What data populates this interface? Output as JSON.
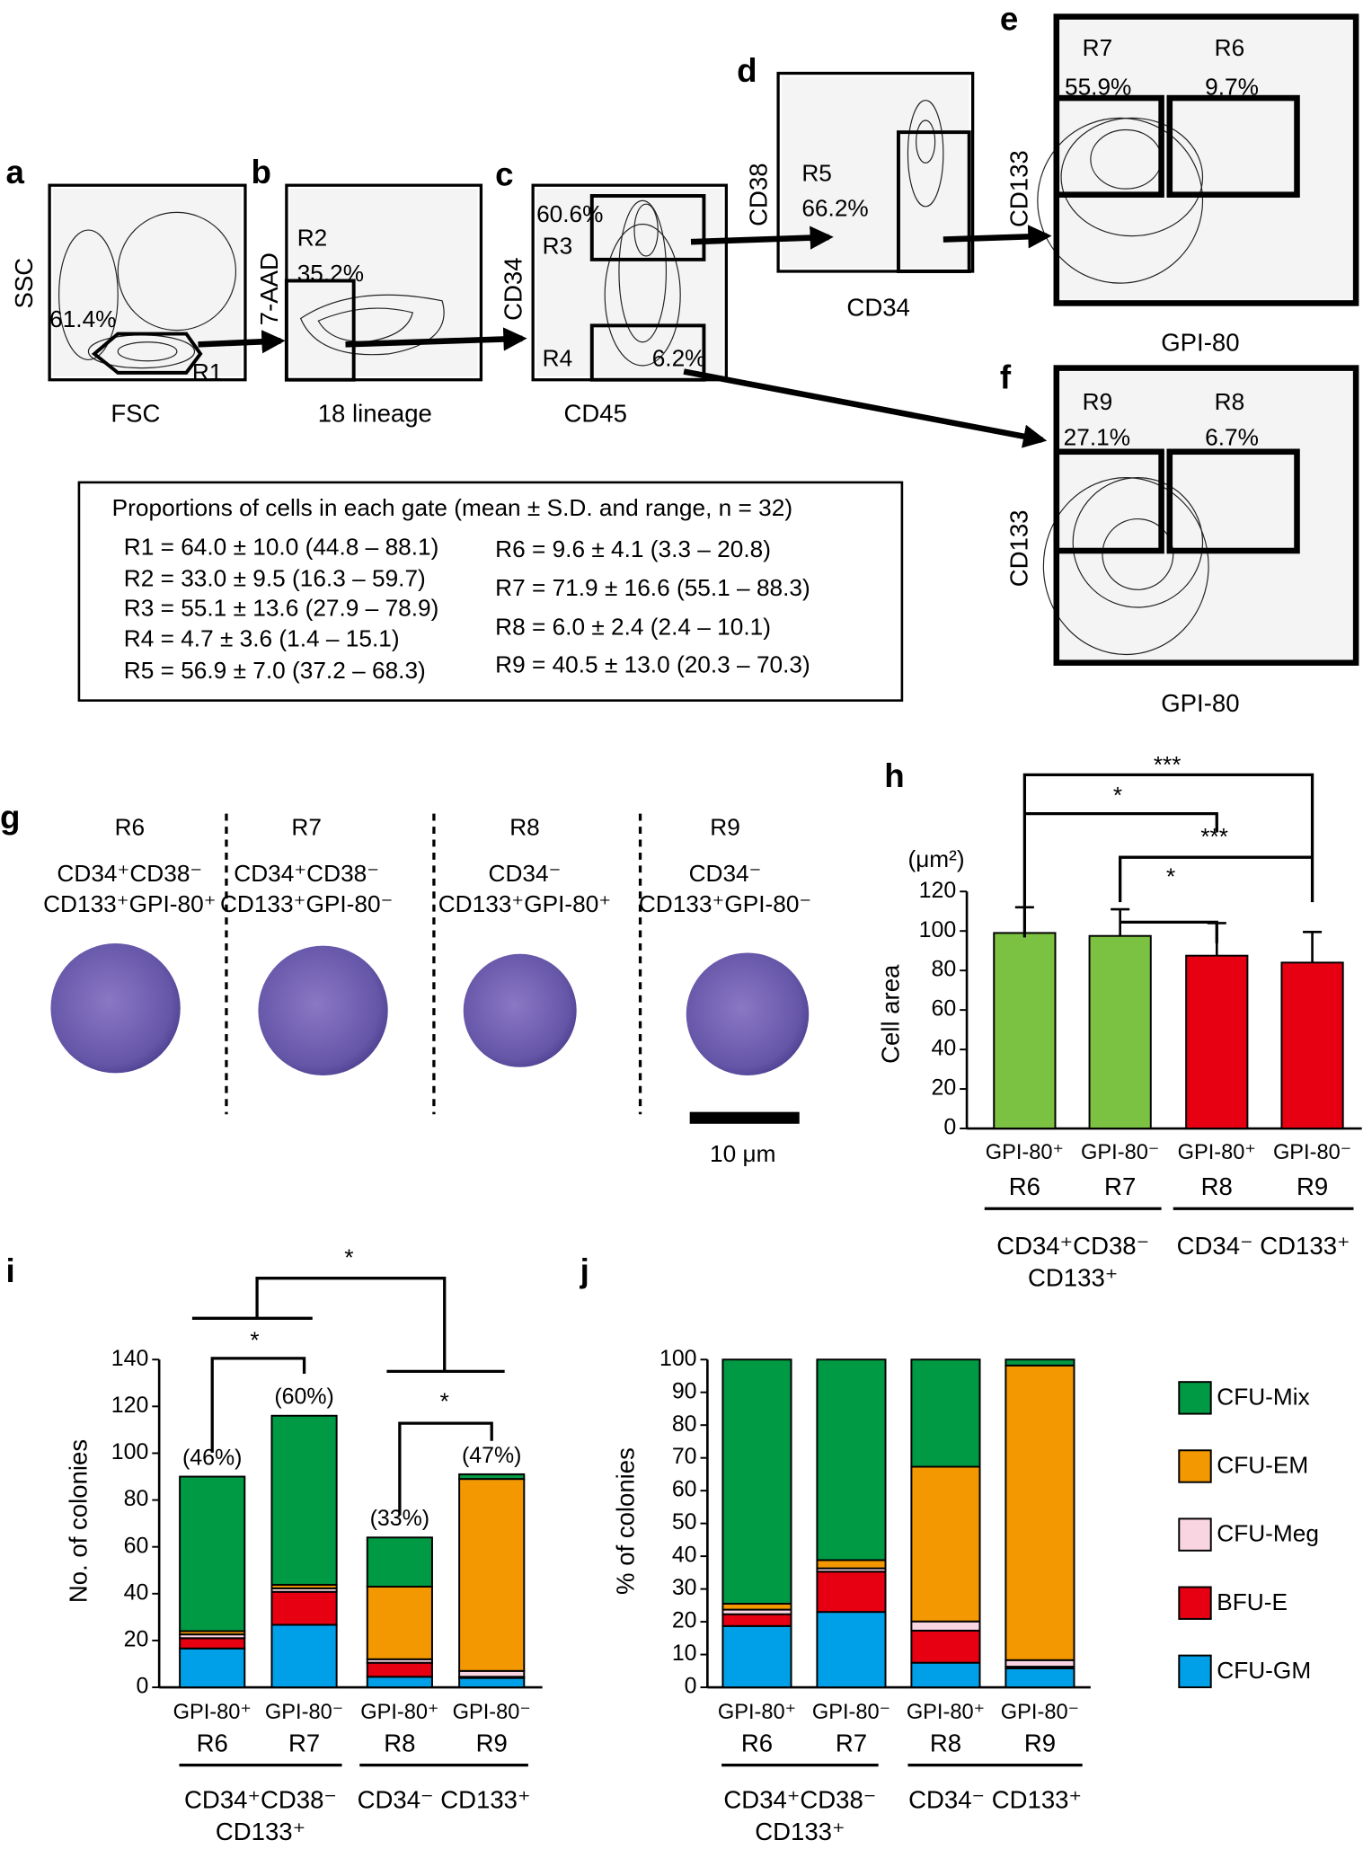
{
  "panels": [
    {
      "letter": "a",
      "y_label": "SSC",
      "x_label": "FSC",
      "labels": [
        "61.4%",
        "R1"
      ]
    },
    {
      "letter": "b",
      "y_label": "7-AAD",
      "x_label": "18 lineage",
      "labels": [
        "R2",
        "35.2%"
      ]
    },
    {
      "letter": "c",
      "y_label": "CD34",
      "x_label": "CD45",
      "labels": [
        "60.6%",
        "R3",
        "R4",
        "6.2%"
      ]
    },
    {
      "letter": "d",
      "y_label": "CD38",
      "x_label": "CD34",
      "labels": [
        "R5",
        "66.2%"
      ]
    },
    {
      "letter": "e",
      "y_label": "CD133",
      "x_label": "GPI-80",
      "labels": [
        "R7",
        "55.9%",
        "R6",
        "9.7%"
      ]
    },
    {
      "letter": "f",
      "y_label": "CD133",
      "x_label": "GPI-80",
      "labels": [
        "R9",
        "27.1%",
        "R8",
        "6.7%"
      ]
    }
  ],
  "summary": {
    "title": "Proportions of cells in each gate (mean ± S.D. and range, n = 32)",
    "left": [
      "R1 = 64.0 ± 10.0 (44.8 – 88.1)",
      "R2 = 33.0 ± 9.5 (16.3 – 59.7)",
      "R3 = 55.1 ± 13.6 (27.9 – 78.9)",
      "R4 = 4.7 ± 3.6 (1.4 – 15.1)",
      "R5 = 56.9 ± 7.0 (37.2 – 68.3)"
    ],
    "right": [
      "R6 = 9.6 ± 4.1 (3.3 – 20.8)",
      "R7 = 71.9 ± 16.6 (55.1 – 88.3)",
      "R8 = 6.0 ± 2.4 (2.4 – 10.1)",
      "R9 = 40.5 ± 13.0 (20.3 – 70.3)"
    ]
  },
  "morphology": {
    "letter": "g",
    "columns": [
      {
        "gate": "R6",
        "lines": [
          "CD34⁺CD38⁻",
          "CD133⁺GPI-80⁺"
        ]
      },
      {
        "gate": "R7",
        "lines": [
          "CD34⁺CD38⁻",
          "CD133⁺GPI-80⁻"
        ]
      },
      {
        "gate": "R8",
        "lines": [
          "CD34⁻",
          "CD133⁺GPI-80⁺"
        ]
      },
      {
        "gate": "R9",
        "lines": [
          "CD34⁻",
          "CD133⁺GPI-80⁻"
        ]
      }
    ],
    "scale_bar": "10 μm"
  },
  "chart_data": [
    {
      "letter": "h",
      "type": "bar",
      "y_label": "Cell area",
      "y_unit": "(μm²)",
      "categories": [
        "GPI-80⁺",
        "GPI-80⁻",
        "GPI-80⁺",
        "GPI-80⁻"
      ],
      "gates": [
        "R6",
        "R7",
        "R8",
        "R9"
      ],
      "groups": [
        [
          "CD34⁺CD38⁻",
          "CD133⁺"
        ],
        [
          "CD34⁻ CD133⁺"
        ]
      ],
      "values": [
        99,
        97.5,
        87.5,
        84
      ],
      "errors": [
        13,
        13.5,
        16.5,
        15.5
      ],
      "colors": [
        "#7cc242",
        "#7cc242",
        "#e60012",
        "#e60012"
      ],
      "ylim": [
        0,
        120
      ],
      "yticks": [
        0,
        20,
        40,
        60,
        80,
        100,
        120
      ],
      "significance": [
        "***",
        "*",
        "***",
        "*"
      ]
    },
    {
      "letter": "i",
      "type": "stacked_bar",
      "y_label": "No. of colonies",
      "categories": [
        "GPI-80⁺",
        "GPI-80⁻",
        "GPI-80⁺",
        "GPI-80⁻"
      ],
      "gates": [
        "R6",
        "R7",
        "R8",
        "R9"
      ],
      "groups": [
        [
          "CD34⁺CD38⁻",
          "CD133⁺"
        ],
        [
          "CD34⁻ CD133⁺"
        ]
      ],
      "series": [
        {
          "color": "#00a0e9",
          "values": [
            16.6,
            26.7,
            4.5,
            4
          ]
        },
        {
          "color": "#e60012",
          "values": [
            4.4,
            14.1,
            6,
            0.5
          ]
        },
        {
          "color": "#f9d5e2",
          "values": [
            1.6,
            1.5,
            1.5,
            2.5
          ]
        },
        {
          "color": "#f39800",
          "values": [
            1.4,
            1.5,
            31,
            82
          ]
        },
        {
          "color": "#009944",
          "values": [
            66,
            72.2,
            21,
            2
          ]
        }
      ],
      "ylim": [
        0,
        140
      ],
      "yticks": [
        0,
        20,
        40,
        60,
        80,
        100,
        120,
        140
      ],
      "bar_annotations": [
        "(46%)",
        "(60%)",
        "(33%)",
        "(47%)"
      ],
      "significance": [
        "*",
        "*",
        "*"
      ]
    },
    {
      "letter": "j",
      "type": "stacked_bar",
      "y_label": "% of colonies",
      "categories": [
        "GPI-80⁺",
        "GPI-80⁻",
        "GPI-80⁺",
        "GPI-80⁻"
      ],
      "gates": [
        "R6",
        "R7",
        "R8",
        "R9"
      ],
      "groups": [
        [
          "CD34⁺CD38⁻",
          "CD133⁺"
        ],
        [
          "CD34⁻ CD133⁺"
        ]
      ],
      "series": [
        {
          "name": "CFU-GM",
          "color": "#00a0e9",
          "values": [
            18.7,
            23,
            7.5,
            5.8
          ]
        },
        {
          "name": "BFU-E",
          "color": "#e60012",
          "values": [
            3.6,
            12.3,
            9.8,
            0.5
          ]
        },
        {
          "name": "CFU-Meg",
          "color": "#f9d5e2",
          "values": [
            1.4,
            1,
            2.8,
            2
          ]
        },
        {
          "name": "CFU-EM",
          "color": "#f39800",
          "values": [
            1.8,
            2.5,
            47.2,
            89.9
          ]
        },
        {
          "name": "CFU-Mix",
          "color": "#009944",
          "values": [
            74.5,
            61.2,
            32.7,
            1.8
          ]
        }
      ],
      "ylim": [
        0,
        100
      ],
      "yticks": [
        0,
        10,
        20,
        30,
        40,
        50,
        60,
        70,
        80,
        90,
        100
      ]
    }
  ]
}
